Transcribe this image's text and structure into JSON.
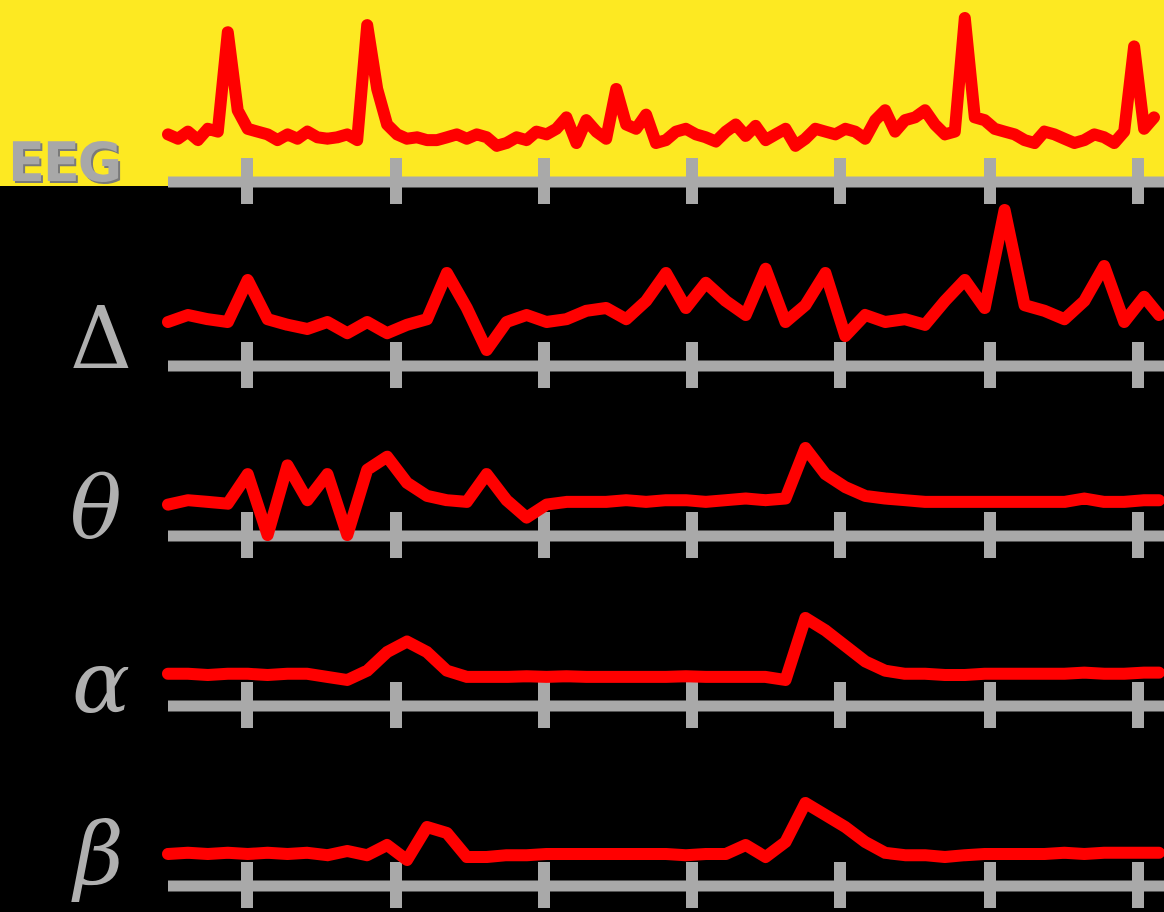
{
  "colors": {
    "background": "#000000",
    "top_band": "#fde922",
    "signal": "#ff0000",
    "axis": "#a9a9a9",
    "label": "#b0b0b0"
  },
  "labels": {
    "eeg": "EEG",
    "delta": "Δ",
    "theta": "θ",
    "alpha": "α",
    "beta": "β"
  },
  "chart_data": {
    "type": "line",
    "x_ticks_count": 7,
    "grid": false,
    "legend": "none",
    "series": [
      {
        "name": "EEG",
        "x": [
          0,
          10,
          20,
          30,
          40,
          50,
          60,
          70,
          80,
          90,
          100,
          110,
          120,
          130,
          140,
          150,
          160,
          170,
          180,
          190,
          200,
          210,
          220,
          230,
          240,
          250,
          260,
          270,
          280,
          290,
          300,
          310,
          320,
          330,
          340,
          350,
          360,
          370,
          380,
          390,
          400,
          410,
          420,
          430,
          440,
          450,
          460,
          470,
          480,
          490,
          500,
          510,
          520,
          530,
          540,
          550,
          560,
          570,
          580,
          590,
          600,
          610,
          620,
          630,
          640,
          650,
          660,
          670,
          680,
          690,
          700,
          710,
          720,
          730,
          740,
          750,
          760,
          770,
          780,
          790,
          800,
          810,
          820,
          830,
          840,
          850,
          860,
          870,
          880,
          890,
          900,
          910,
          920,
          930,
          940,
          950,
          960,
          970,
          980,
          990
        ],
        "values": [
          0.18,
          0.15,
          0.2,
          0.14,
          0.22,
          0.2,
          0.9,
          0.35,
          0.22,
          0.2,
          0.18,
          0.14,
          0.18,
          0.15,
          0.2,
          0.16,
          0.15,
          0.16,
          0.18,
          0.14,
          0.95,
          0.5,
          0.25,
          0.18,
          0.15,
          0.16,
          0.14,
          0.14,
          0.16,
          0.18,
          0.15,
          0.18,
          0.16,
          0.1,
          0.12,
          0.16,
          0.14,
          0.2,
          0.18,
          0.22,
          0.3,
          0.12,
          0.28,
          0.2,
          0.15,
          0.5,
          0.25,
          0.22,
          0.32,
          0.12,
          0.14,
          0.2,
          0.22,
          0.18,
          0.16,
          0.13,
          0.2,
          0.25,
          0.17,
          0.24,
          0.14,
          0.18,
          0.22,
          0.1,
          0.15,
          0.22,
          0.2,
          0.18,
          0.22,
          0.2,
          0.15,
          0.28,
          0.35,
          0.2,
          0.28,
          0.3,
          0.35,
          0.25,
          0.18,
          0.2,
          1.0,
          0.3,
          0.28,
          0.22,
          0.2,
          0.18,
          0.14,
          0.12,
          0.2,
          0.18,
          0.15,
          0.12,
          0.14,
          0.18,
          0.16,
          0.12,
          0.2,
          0.8,
          0.22,
          0.3
        ]
      },
      {
        "name": "Δ",
        "x": [
          0,
          20,
          40,
          60,
          80,
          100,
          120,
          140,
          160,
          180,
          200,
          220,
          240,
          260,
          280,
          300,
          320,
          340,
          360,
          380,
          400,
          420,
          440,
          460,
          480,
          500,
          520,
          540,
          560,
          580,
          600,
          620,
          640,
          660,
          680,
          700,
          720,
          740,
          760,
          780,
          800,
          820,
          840,
          860,
          880,
          900,
          920,
          940,
          960,
          980,
          995
        ],
        "values": [
          0.2,
          0.25,
          0.22,
          0.2,
          0.5,
          0.22,
          0.18,
          0.15,
          0.2,
          0.12,
          0.2,
          0.12,
          0.18,
          0.22,
          0.55,
          0.3,
          0.0,
          0.2,
          0.25,
          0.2,
          0.22,
          0.28,
          0.3,
          0.22,
          0.35,
          0.55,
          0.3,
          0.48,
          0.35,
          0.25,
          0.58,
          0.2,
          0.32,
          0.55,
          0.1,
          0.25,
          0.2,
          0.22,
          0.18,
          0.35,
          0.5,
          0.3,
          1.0,
          0.32,
          0.28,
          0.22,
          0.35,
          0.6,
          0.2,
          0.38,
          0.25
        ]
      },
      {
        "name": "θ",
        "x": [
          0,
          20,
          40,
          60,
          80,
          100,
          120,
          140,
          160,
          180,
          200,
          220,
          240,
          260,
          280,
          300,
          320,
          340,
          360,
          380,
          400,
          420,
          440,
          460,
          480,
          500,
          520,
          540,
          560,
          580,
          600,
          620,
          640,
          660,
          680,
          700,
          720,
          740,
          760,
          780,
          800,
          820,
          840,
          860,
          880,
          900,
          920,
          940,
          960,
          980,
          995
        ],
        "values": [
          0.35,
          0.4,
          0.38,
          0.36,
          0.7,
          0.0,
          0.8,
          0.4,
          0.7,
          0.0,
          0.75,
          0.9,
          0.6,
          0.45,
          0.4,
          0.38,
          0.7,
          0.4,
          0.2,
          0.35,
          0.38,
          0.38,
          0.38,
          0.4,
          0.38,
          0.4,
          0.4,
          0.38,
          0.4,
          0.42,
          0.4,
          0.42,
          1.0,
          0.7,
          0.55,
          0.45,
          0.42,
          0.4,
          0.38,
          0.38,
          0.38,
          0.38,
          0.38,
          0.38,
          0.38,
          0.38,
          0.42,
          0.38,
          0.38,
          0.4,
          0.4
        ]
      },
      {
        "name": "α",
        "x": [
          0,
          20,
          40,
          60,
          80,
          100,
          120,
          140,
          160,
          180,
          200,
          220,
          240,
          260,
          280,
          300,
          320,
          340,
          360,
          380,
          400,
          420,
          440,
          460,
          480,
          500,
          520,
          540,
          560,
          580,
          600,
          620,
          640,
          660,
          680,
          700,
          720,
          740,
          760,
          780,
          800,
          820,
          840,
          860,
          880,
          900,
          920,
          940,
          960,
          980,
          995
        ],
        "values": [
          0.1,
          0.1,
          0.08,
          0.1,
          0.1,
          0.08,
          0.1,
          0.1,
          0.05,
          0.0,
          0.15,
          0.45,
          0.62,
          0.45,
          0.15,
          0.05,
          0.05,
          0.05,
          0.06,
          0.05,
          0.06,
          0.05,
          0.05,
          0.05,
          0.05,
          0.05,
          0.06,
          0.05,
          0.05,
          0.05,
          0.05,
          0.0,
          1.0,
          0.8,
          0.55,
          0.3,
          0.15,
          0.1,
          0.1,
          0.08,
          0.08,
          0.1,
          0.1,
          0.1,
          0.1,
          0.1,
          0.12,
          0.1,
          0.1,
          0.12,
          0.12
        ]
      },
      {
        "name": "β",
        "x": [
          0,
          20,
          40,
          60,
          80,
          100,
          120,
          140,
          160,
          180,
          200,
          220,
          240,
          260,
          280,
          300,
          320,
          340,
          360,
          380,
          400,
          420,
          440,
          460,
          480,
          500,
          520,
          540,
          560,
          580,
          600,
          620,
          640,
          660,
          680,
          700,
          720,
          740,
          760,
          780,
          800,
          820,
          840,
          860,
          880,
          900,
          920,
          940,
          960,
          980,
          995
        ],
        "values": [
          0.1,
          0.12,
          0.1,
          0.12,
          0.1,
          0.12,
          0.1,
          0.12,
          0.08,
          0.15,
          0.08,
          0.25,
          0.0,
          0.55,
          0.45,
          0.05,
          0.05,
          0.08,
          0.08,
          0.1,
          0.1,
          0.1,
          0.1,
          0.1,
          0.1,
          0.1,
          0.08,
          0.1,
          0.1,
          0.25,
          0.05,
          0.3,
          0.95,
          0.75,
          0.55,
          0.3,
          0.12,
          0.08,
          0.08,
          0.05,
          0.08,
          0.1,
          0.1,
          0.1,
          0.1,
          0.12,
          0.1,
          0.12,
          0.12,
          0.12,
          0.12
        ]
      }
    ]
  }
}
